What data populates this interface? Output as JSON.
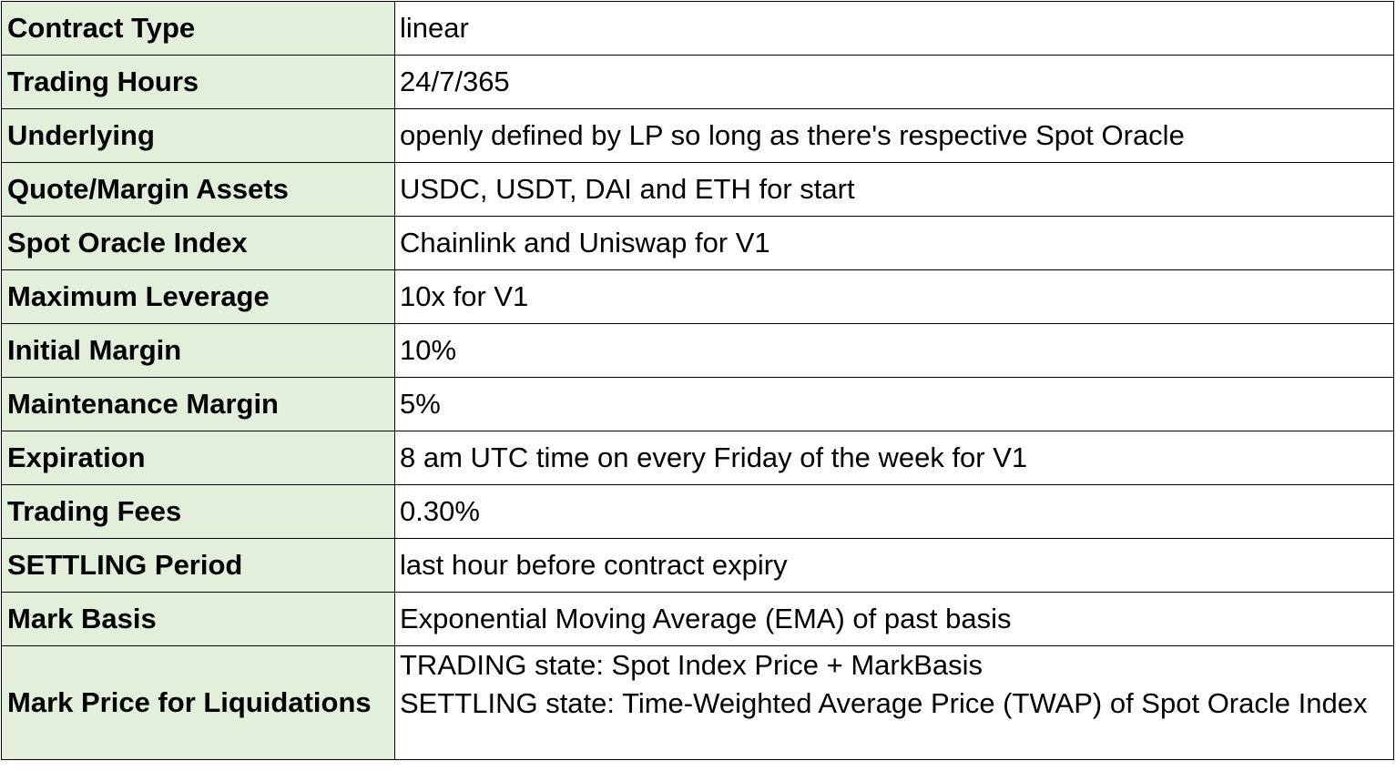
{
  "table": {
    "rows": [
      {
        "key": "Contract Type",
        "value": "linear"
      },
      {
        "key": "Trading Hours",
        "value": "24/7/365"
      },
      {
        "key": "Underlying",
        "value": "openly defined by LP so long as there's respective Spot Oracle"
      },
      {
        "key": "Quote/Margin Assets",
        "value": "USDC, USDT, DAI and ETH for start"
      },
      {
        "key": "Spot Oracle Index",
        "value": "Chainlink and Uniswap for V1"
      },
      {
        "key": "Maximum Leverage",
        "value": "10x for V1"
      },
      {
        "key": "Initial Margin",
        "value": "10%"
      },
      {
        "key": "Maintenance Margin",
        "value": "5%"
      },
      {
        "key": "Expiration",
        "value": "8 am UTC time on every Friday of the week for V1"
      },
      {
        "key": "Trading Fees",
        "value": "0.30%"
      },
      {
        "key": "SETTLING Period",
        "value": "last hour before contract expiry"
      },
      {
        "key": "Mark Basis",
        "value": "Exponential Moving Average (EMA) of past basis"
      }
    ],
    "last_row": {
      "key": "Mark Price for Liquidations",
      "line1": "TRADING state: Spot Index Price + MarkBasis",
      "line2": "SETTLING state:  Time-Weighted Average Price (TWAP) of Spot Oracle Index"
    }
  },
  "colors": {
    "key_background": "#e2efda",
    "border": "#000000"
  }
}
